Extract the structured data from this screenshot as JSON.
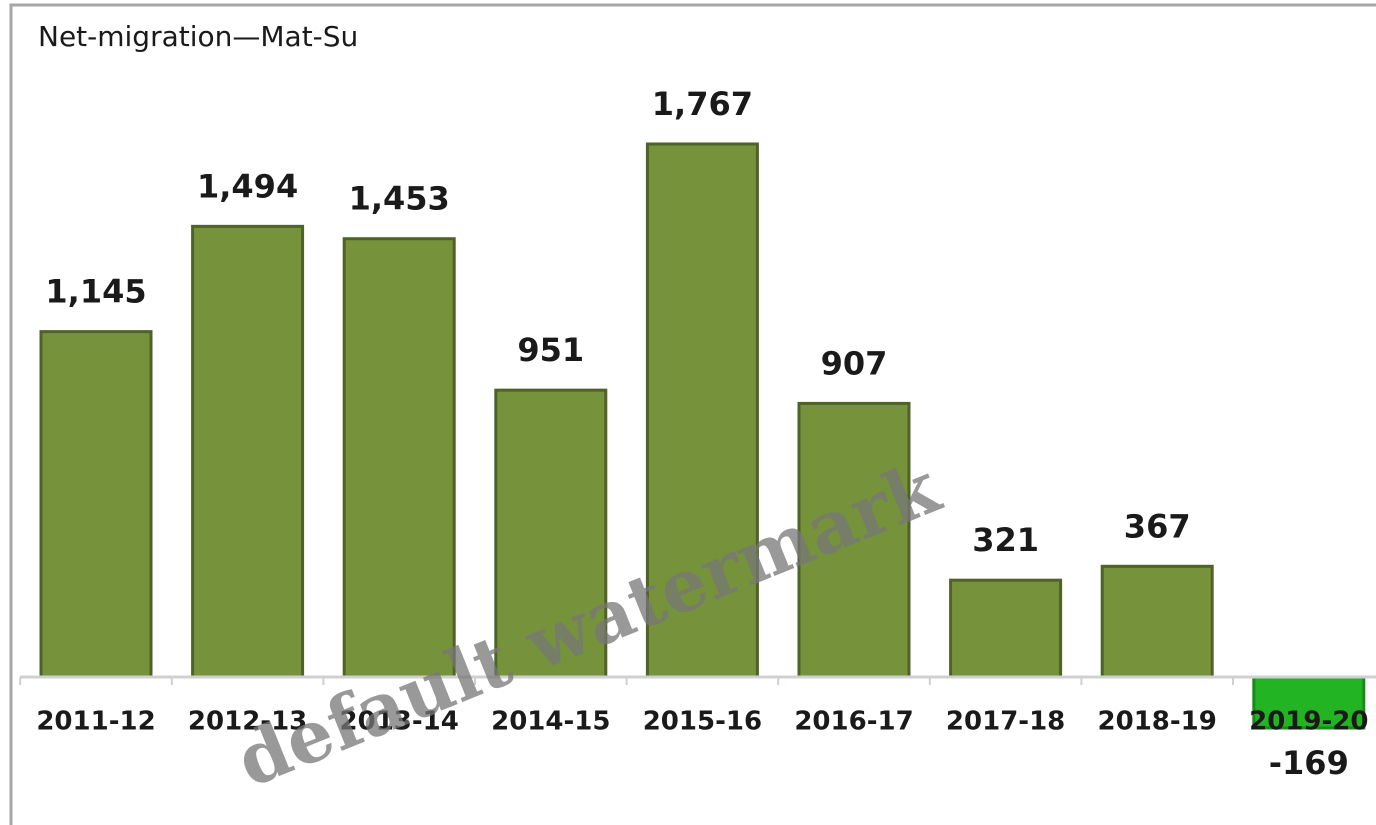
{
  "chart_data": {
    "type": "bar",
    "title": "Net-migration—Mat-Su",
    "categories": [
      "2011-12",
      "2012-13",
      "2013-14",
      "2014-15",
      "2015-16",
      "2016-17",
      "2017-18",
      "2018-19",
      "2019-20"
    ],
    "values": [
      1145,
      1494,
      1453,
      951,
      1767,
      907,
      321,
      367,
      -169
    ],
    "value_labels": [
      "1,145",
      "1,494",
      "1,453",
      "951",
      "1,767",
      "907",
      "321",
      "367",
      "-169"
    ],
    "colors": [
      "#76933c",
      "#76933c",
      "#76933c",
      "#76933c",
      "#76933c",
      "#76933c",
      "#76933c",
      "#76933c",
      "#22b422"
    ],
    "watermark": "default watermark"
  }
}
